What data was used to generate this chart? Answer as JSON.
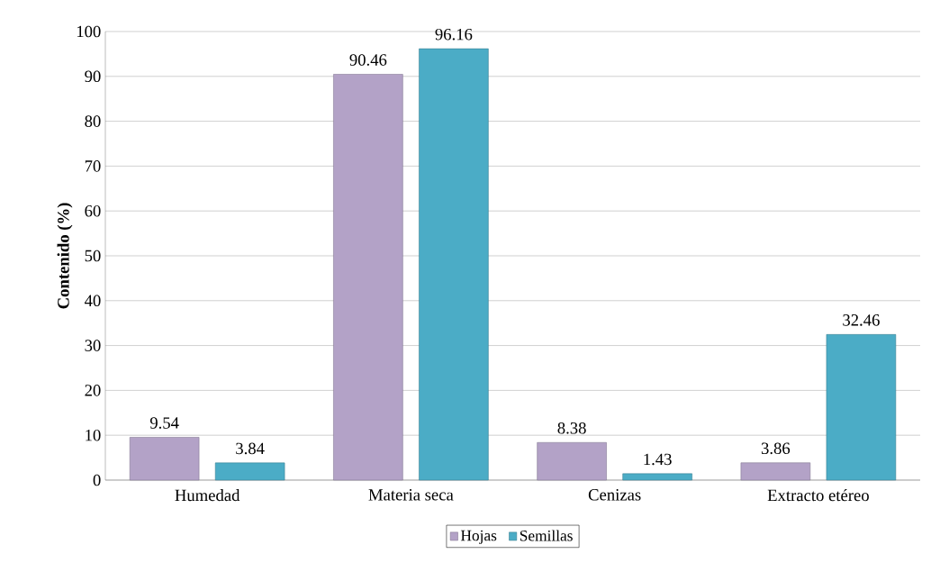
{
  "chart_data": {
    "type": "bar",
    "ylabel": "Contenido (%)",
    "categories": [
      "Humedad",
      "Materia seca",
      "Cenizas",
      "Extracto etéreo"
    ],
    "series": [
      {
        "name": "Hojas",
        "color": "#b3a2c7",
        "values": [
          9.54,
          90.46,
          8.38,
          3.86
        ]
      },
      {
        "name": "Semillas",
        "color": "#4bacc6",
        "values": [
          3.84,
          96.16,
          1.43,
          32.46
        ]
      }
    ],
    "ylim": [
      0,
      100
    ],
    "yticks": [
      0,
      10,
      20,
      30,
      40,
      50,
      60,
      70,
      80,
      90,
      100
    ],
    "grid": "y",
    "legend": "bottom",
    "data_labels": true
  }
}
